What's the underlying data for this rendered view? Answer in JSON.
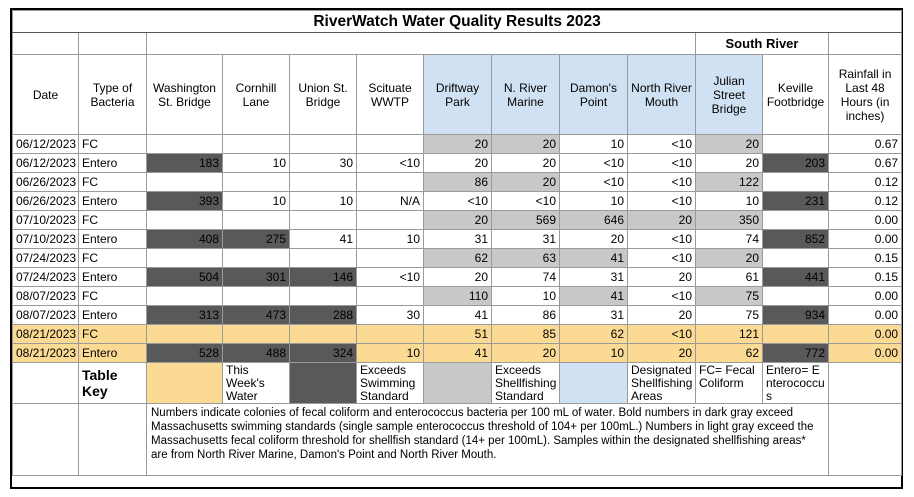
{
  "title": "RiverWatch Water Quality Results 2023",
  "group_label": "South River",
  "columns": [
    "Date",
    "Type of Bacteria",
    "Washington St. Bridge",
    "Cornhill Lane",
    "Union St. Bridge",
    "Scituate WWTP",
    "Driftway Park",
    "N. River Marine",
    "Damon's Point",
    "North River Mouth",
    "Julian Street Bridge",
    "Keville Footbridge",
    "Rainfall in Last 48 Hours (in inches)"
  ],
  "rows": [
    [
      "06/12/2023",
      "FC",
      "",
      "",
      "",
      "",
      "20",
      "20",
      "10",
      "<10",
      "20",
      "",
      "0.67"
    ],
    [
      "06/12/2023",
      "Entero",
      "183",
      "10",
      "30",
      "<10",
      "20",
      "20",
      "<10",
      "<10",
      "20",
      "203",
      "0.67"
    ],
    [
      "06/26/2023",
      "FC",
      "",
      "",
      "",
      "",
      "86",
      "20",
      "<10",
      "<10",
      "122",
      "",
      "0.12"
    ],
    [
      "06/26/2023",
      "Entero",
      "393",
      "10",
      "10",
      "N/A",
      "<10",
      "<10",
      "10",
      "<10",
      "10",
      "231",
      "0.12"
    ],
    [
      "07/10/2023",
      "FC",
      "",
      "",
      "",
      "",
      "20",
      "569",
      "646",
      "20",
      "350",
      "",
      "0.00"
    ],
    [
      "07/10/2023",
      "Entero",
      "408",
      "275",
      "41",
      "10",
      "31",
      "31",
      "20",
      "<10",
      "74",
      "852",
      "0.00"
    ],
    [
      "07/24/2023",
      "FC",
      "",
      "",
      "",
      "",
      "62",
      "63",
      "41",
      "<10",
      "20",
      "",
      "0.15"
    ],
    [
      "07/24/2023",
      "Entero",
      "504",
      "301",
      "146",
      "<10",
      "20",
      "74",
      "31",
      "20",
      "61",
      "441",
      "0.15"
    ],
    [
      "08/07/2023",
      "FC",
      "",
      "",
      "",
      "",
      "110",
      "10",
      "41",
      "<10",
      "75",
      "",
      "0.00"
    ],
    [
      "08/07/2023",
      "Entero",
      "313",
      "473",
      "288",
      "30",
      "41",
      "86",
      "31",
      "20",
      "75",
      "934",
      "0.00"
    ],
    [
      "08/21/2023",
      "FC",
      "",
      "",
      "",
      "",
      "51",
      "85",
      "62",
      "<10",
      "121",
      "",
      "0.00"
    ],
    [
      "08/21/2023",
      "Entero",
      "528",
      "488",
      "324",
      "10",
      "41",
      "20",
      "10",
      "20",
      "62",
      "772",
      "0.00"
    ]
  ],
  "shading": [
    [
      "",
      "",
      "",
      "",
      "",
      "",
      "L",
      "L",
      "",
      "",
      "L",
      "",
      ""
    ],
    [
      "",
      "",
      "D",
      "",
      "",
      "",
      "",
      "",
      "",
      "",
      "",
      "D",
      ""
    ],
    [
      "",
      "",
      "",
      "",
      "",
      "",
      "L",
      "L",
      "",
      "",
      "L",
      "",
      ""
    ],
    [
      "",
      "",
      "D",
      "",
      "",
      "",
      "",
      "",
      "",
      "",
      "",
      "D",
      ""
    ],
    [
      "",
      "",
      "",
      "",
      "",
      "",
      "L",
      "L",
      "L",
      "L",
      "L",
      "",
      ""
    ],
    [
      "",
      "",
      "D",
      "D",
      "",
      "",
      "",
      "",
      "",
      "",
      "",
      "D",
      ""
    ],
    [
      "",
      "",
      "",
      "",
      "",
      "",
      "L",
      "L",
      "L",
      "",
      "L",
      "",
      ""
    ],
    [
      "",
      "",
      "D",
      "D",
      "D",
      "",
      "",
      "",
      "",
      "",
      "",
      "D",
      ""
    ],
    [
      "",
      "",
      "",
      "",
      "",
      "",
      "L",
      "",
      "L",
      "",
      "L",
      "",
      ""
    ],
    [
      "",
      "",
      "D",
      "D",
      "D",
      "",
      "",
      "",
      "",
      "",
      "",
      "D",
      ""
    ],
    [
      "",
      "",
      "",
      "",
      "",
      "",
      "L",
      "L",
      "L",
      "",
      "L",
      "",
      ""
    ],
    [
      "",
      "",
      "D",
      "D",
      "D",
      "",
      "",
      "",
      "",
      "",
      "",
      "D",
      ""
    ]
  ],
  "highlight_rows": [
    10,
    11
  ],
  "key": {
    "label": "Table Key",
    "this_week": "This Week's Water",
    "swimming": "Exceeds Swimming Standard",
    "shellfishing": "Exceeds Shellfishing Standard",
    "designated": "Designated Shellfishing Areas",
    "fc": "FC= Fecal Coliform",
    "entero": "Entero= Enterococcus"
  },
  "note": "Numbers indicate colonies of fecal coliform and enterococcus bacteria per 100 mL of water. Bold numbers in dark gray exceed Massachusetts swimming standards (single sample enterococcus threshold of 104+ per 100mL.) Numbers in light gray exceed the Massachusetts fecal coliform threshold for shellfish standard (14+ per 100mL). Samples within the designated shellfishing areas* are from North River Marine, Damon's Point and North River Mouth.",
  "colors": {
    "dark_gray": "#595959",
    "light_gray": "#c8c8c8",
    "blue": "#d0e1f3",
    "yellow": "#fbdb94"
  }
}
